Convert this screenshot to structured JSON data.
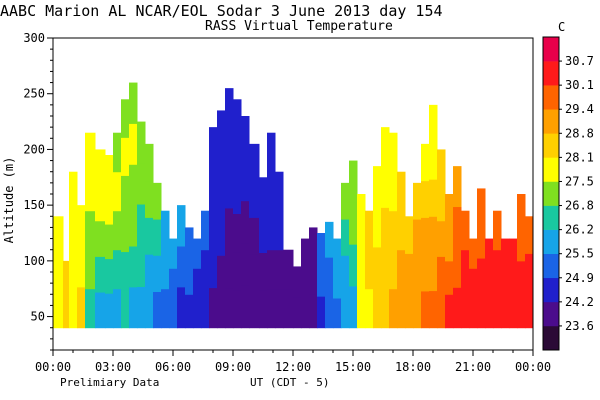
{
  "header": {
    "title": "AABC Marion AL  NCAR/EOL Sodar   3 June 2013  day 154",
    "subtitle": "RASS Virtual Temperature"
  },
  "footer": {
    "note_left": "Prelimiary Data",
    "note_center": "UT  (CDT - 5)"
  },
  "chart_data": {
    "type": "heatmap",
    "title": "AABC Marion AL  NCAR/EOL Sodar   3 June 2013  day 154",
    "subtitle": "RASS Virtual Temperature",
    "xlabel": "UT  (CDT - 5)",
    "ylabel": "Altitude (m)",
    "xlim_hours": [
      0,
      24
    ],
    "ylim": [
      20,
      300
    ],
    "x_ticks": [
      "00:00",
      "03:00",
      "06:00",
      "09:00",
      "12:00",
      "15:00",
      "18:00",
      "21:00",
      "00:00"
    ],
    "y_ticks": [
      "50",
      "100",
      "150",
      "200",
      "250",
      "300"
    ],
    "colorbar": {
      "unit": "C",
      "labels": [
        "23.6",
        "24.2",
        "24.9",
        "25.5",
        "26.2",
        "26.8",
        "27.5",
        "28.1",
        "28.8",
        "29.4",
        "30.1",
        "30.7"
      ],
      "colors": [
        "#2b0a36",
        "#4b0c8c",
        "#2020cc",
        "#1a64e6",
        "#16a4e8",
        "#19c8a0",
        "#7fe020",
        "#ffff00",
        "#ffd000",
        "#ffa000",
        "#ff6400",
        "#ff1a1a",
        "#e8004a"
      ]
    },
    "profiles": [
      {
        "t": 0.0,
        "top": 140,
        "temps": [
          27.9,
          27.9,
          28.0
        ]
      },
      {
        "t": 0.5,
        "top": 100,
        "temps": [
          28.5,
          28.3
        ]
      },
      {
        "t": 0.8,
        "top": 180,
        "temps": [
          27.6,
          27.8,
          27.9,
          27.8
        ]
      },
      {
        "t": 1.2,
        "top": 150,
        "temps": [
          28.2,
          28.0,
          27.8
        ]
      },
      {
        "t": 1.6,
        "top": 215,
        "temps": [
          26.2,
          26.8,
          27.3,
          27.7,
          27.5
        ]
      },
      {
        "t": 2.1,
        "top": 200,
        "temps": [
          26.0,
          26.5,
          27.1,
          27.5,
          27.6
        ]
      },
      {
        "t": 2.6,
        "top": 195,
        "temps": [
          26.1,
          26.5,
          27.2,
          27.6,
          27.5
        ]
      },
      {
        "t": 3.0,
        "top": 215,
        "temps": [
          26.1,
          26.6,
          27.0,
          27.5,
          27.4
        ]
      },
      {
        "t": 3.4,
        "top": 245,
        "temps": [
          26.2,
          26.4,
          26.9,
          27.4,
          27.6,
          27.2
        ]
      },
      {
        "t": 3.8,
        "top": 260,
        "temps": [
          26.0,
          26.4,
          26.8,
          27.3,
          27.5,
          27.3
        ]
      },
      {
        "t": 4.2,
        "top": 225,
        "temps": [
          25.8,
          26.2,
          26.7,
          27.2,
          27.4
        ]
      },
      {
        "t": 4.6,
        "top": 205,
        "temps": [
          25.5,
          26.0,
          26.5,
          27.0,
          27.2
        ]
      },
      {
        "t": 5.0,
        "top": 170,
        "temps": [
          25.2,
          25.8,
          26.3,
          26.8
        ]
      },
      {
        "t": 5.4,
        "top": 145,
        "temps": [
          25.0,
          25.5,
          26.1
        ]
      },
      {
        "t": 5.8,
        "top": 120,
        "temps": [
          24.9,
          25.3,
          25.8
        ]
      },
      {
        "t": 6.2,
        "top": 150,
        "temps": [
          24.6,
          25.1,
          25.6
        ]
      },
      {
        "t": 6.6,
        "top": 130,
        "temps": [
          24.4,
          24.9,
          25.3
        ]
      },
      {
        "t": 7.0,
        "top": 120,
        "temps": [
          24.3,
          24.7,
          25.1
        ]
      },
      {
        "t": 7.4,
        "top": 145,
        "temps": [
          24.2,
          24.5,
          24.9
        ]
      },
      {
        "t": 7.8,
        "top": 220,
        "temps": [
          24.1,
          24.2,
          24.3,
          24.4,
          24.4
        ]
      },
      {
        "t": 8.2,
        "top": 235,
        "temps": [
          24.0,
          24.1,
          24.2,
          24.3,
          24.3,
          24.3
        ]
      },
      {
        "t": 8.6,
        "top": 255,
        "temps": [
          23.8,
          24.0,
          24.1,
          24.2,
          24.2,
          24.3
        ]
      },
      {
        "t": 9.0,
        "top": 245,
        "temps": [
          23.7,
          23.9,
          24.1,
          24.2,
          24.2,
          24.3
        ]
      },
      {
        "t": 9.4,
        "top": 230,
        "temps": [
          23.8,
          24.0,
          24.1,
          24.2,
          24.3
        ]
      },
      {
        "t": 9.8,
        "top": 205,
        "temps": [
          23.9,
          24.0,
          24.1,
          24.2,
          24.2
        ]
      },
      {
        "t": 10.3,
        "top": 175,
        "temps": [
          24.0,
          24.1,
          24.2,
          24.2
        ]
      },
      {
        "t": 10.7,
        "top": 215,
        "temps": [
          23.9,
          24.0,
          24.2,
          24.3,
          24.3
        ]
      },
      {
        "t": 11.1,
        "top": 180,
        "temps": [
          24.0,
          24.1,
          24.2,
          24.3
        ]
      },
      {
        "t": 11.5,
        "top": 110,
        "temps": [
          23.8,
          24.0
        ]
      },
      {
        "t": 12.0,
        "top": 95,
        "temps": [
          23.7,
          23.9
        ]
      },
      {
        "t": 12.4,
        "top": 120,
        "temps": [
          23.6,
          23.8,
          24.0
        ]
      },
      {
        "t": 12.8,
        "top": 130,
        "temps": [
          23.7,
          23.9,
          24.1
        ]
      },
      {
        "t": 13.2,
        "top": 125,
        "temps": [
          24.6,
          24.9,
          25.2
        ]
      },
      {
        "t": 13.6,
        "top": 135,
        "temps": [
          25.0,
          25.4,
          25.7
        ]
      },
      {
        "t": 14.0,
        "top": 120,
        "temps": [
          25.4,
          25.8,
          26.1
        ]
      },
      {
        "t": 14.4,
        "top": 170,
        "temps": [
          25.6,
          26.0,
          26.5,
          26.9
        ]
      },
      {
        "t": 14.8,
        "top": 190,
        "temps": [
          26.0,
          26.4,
          26.9,
          27.3
        ]
      },
      {
        "t": 15.2,
        "top": 160,
        "temps": [
          27.6,
          27.8,
          27.9,
          28.0
        ]
      },
      {
        "t": 15.6,
        "top": 145,
        "temps": [
          28.0,
          28.1,
          28.2
        ]
      },
      {
        "t": 16.0,
        "top": 185,
        "temps": [
          28.2,
          28.1,
          28.0,
          27.9
        ]
      },
      {
        "t": 16.4,
        "top": 220,
        "temps": [
          28.5,
          28.3,
          28.1,
          27.8,
          27.6
        ]
      },
      {
        "t": 16.8,
        "top": 215,
        "temps": [
          28.8,
          28.6,
          28.3,
          27.9,
          27.7
        ]
      },
      {
        "t": 17.2,
        "top": 180,
        "temps": [
          29.0,
          28.8,
          28.5,
          28.2
        ]
      },
      {
        "t": 17.6,
        "top": 140,
        "temps": [
          29.2,
          28.9,
          28.6
        ]
      },
      {
        "t": 18.0,
        "top": 170,
        "temps": [
          29.3,
          29.0,
          28.8,
          28.5
        ]
      },
      {
        "t": 18.4,
        "top": 205,
        "temps": [
          29.5,
          29.1,
          28.8,
          28.3,
          27.9
        ]
      },
      {
        "t": 18.8,
        "top": 240,
        "temps": [
          29.7,
          29.2,
          28.8,
          28.4,
          28.0,
          27.7
        ]
      },
      {
        "t": 19.2,
        "top": 200,
        "temps": [
          29.9,
          29.5,
          29.0,
          28.6,
          28.2
        ]
      },
      {
        "t": 19.6,
        "top": 160,
        "temps": [
          30.1,
          29.7,
          29.2,
          28.8
        ]
      },
      {
        "t": 20.0,
        "top": 185,
        "temps": [
          30.3,
          29.9,
          29.4,
          29.0
        ]
      },
      {
        "t": 20.4,
        "top": 145,
        "temps": [
          30.4,
          30.1,
          29.7
        ]
      },
      {
        "t": 20.8,
        "top": 120,
        "temps": [
          30.6,
          30.3,
          30.0
        ]
      },
      {
        "t": 21.2,
        "top": 165,
        "temps": [
          30.6,
          30.2,
          29.9,
          29.6
        ]
      },
      {
        "t": 21.6,
        "top": 120,
        "temps": [
          30.5,
          30.3,
          30.1
        ]
      },
      {
        "t": 22.0,
        "top": 145,
        "temps": [
          30.4,
          30.2,
          30.0
        ]
      },
      {
        "t": 22.4,
        "top": 120,
        "temps": [
          30.3,
          30.2,
          30.1
        ]
      },
      {
        "t": 22.8,
        "top": 120,
        "temps": [
          30.3,
          30.2,
          30.1
        ]
      },
      {
        "t": 23.2,
        "top": 160,
        "temps": [
          30.2,
          30.1,
          30.0,
          29.9
        ]
      },
      {
        "t": 23.6,
        "top": 140,
        "temps": [
          30.2,
          30.1,
          30.0
        ]
      }
    ]
  }
}
